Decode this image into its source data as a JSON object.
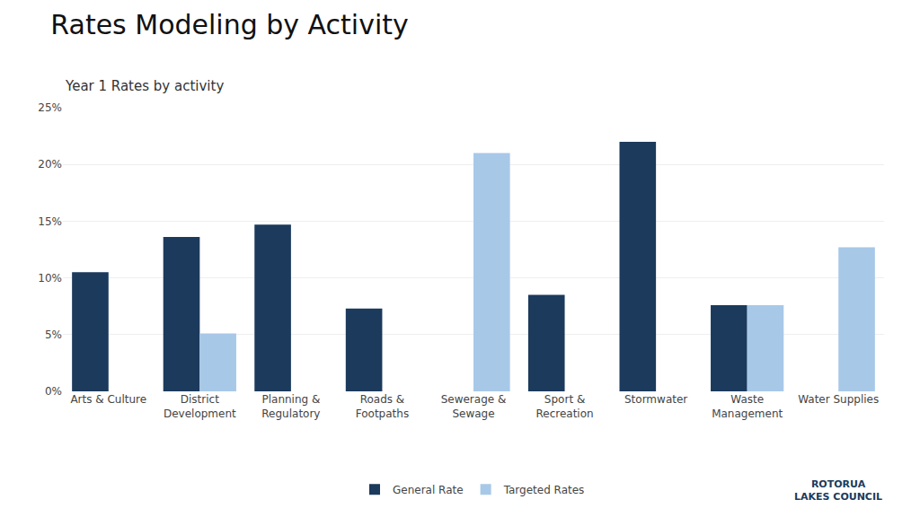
{
  "chart_data": {
    "type": "bar",
    "title": "Rates Modeling by Activity",
    "subtitle": "Year 1 Rates by activity",
    "categories": [
      "Arts & Culture",
      "District\nDevelopment",
      "Planning &\nRegulatory",
      "Roads &\nFootpaths",
      "Sewerage &\nSewage",
      "Sport &\nRecreation",
      "Stormwater",
      "Waste\nManagement",
      "Water Supplies"
    ],
    "series": [
      {
        "name": "General Rate",
        "color": "#1b3a5c",
        "values": [
          0.105,
          0.136,
          0.147,
          0.073,
          0,
          0.085,
          0.22,
          0.076,
          0
        ]
      },
      {
        "name": "Targeted Rates",
        "color": "#a8c8e8",
        "values": [
          0,
          0.051,
          0,
          0,
          0.21,
          0,
          0,
          0.076,
          0.127
        ]
      }
    ],
    "ylim": [
      0,
      0.25
    ],
    "yticks": [
      {
        "value": 0,
        "label": "0%"
      },
      {
        "value": 0.05,
        "label": "5%"
      },
      {
        "value": 0.1,
        "label": "10%"
      },
      {
        "value": 0.15,
        "label": "15%"
      },
      {
        "value": 0.2,
        "label": "20%"
      },
      {
        "value": 0.25,
        "label": "25%"
      }
    ],
    "grid": true,
    "legend": "bottom",
    "annotations": [
      "ROTORUA\nLAKES COUNCIL"
    ]
  }
}
